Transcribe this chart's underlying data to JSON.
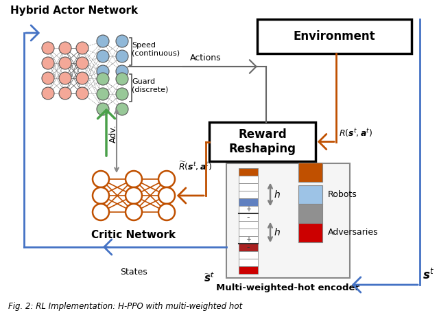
{
  "title": "Fig. 2: RL Implementation: H-PPO with multi-weighted hot",
  "background": "#ffffff",
  "hybrid_actor_label": "Hybrid Actor Network",
  "critic_label": "Critic Network",
  "environment_label": "Environment",
  "reward_reshaping_label": "Reward\nReshaping",
  "encoder_label": "Multi-weighted-hot encoder",
  "states_label": "States",
  "adv_label": "Adv.",
  "actions_label": "Actions",
  "speed_label": "Speed\n(continuous)",
  "guard_label": "Guard\n(discrete)",
  "robots_label": "Robots",
  "adversaries_label": "Adversaries",
  "orange_color": "#C05000",
  "blue_color": "#4472C4",
  "gray_color": "#808080",
  "green_color": "#4AA04A",
  "robot_color": "#9DC3E6",
  "adversary_color": "#CC0000",
  "fig_width": 6.4,
  "fig_height": 4.59
}
